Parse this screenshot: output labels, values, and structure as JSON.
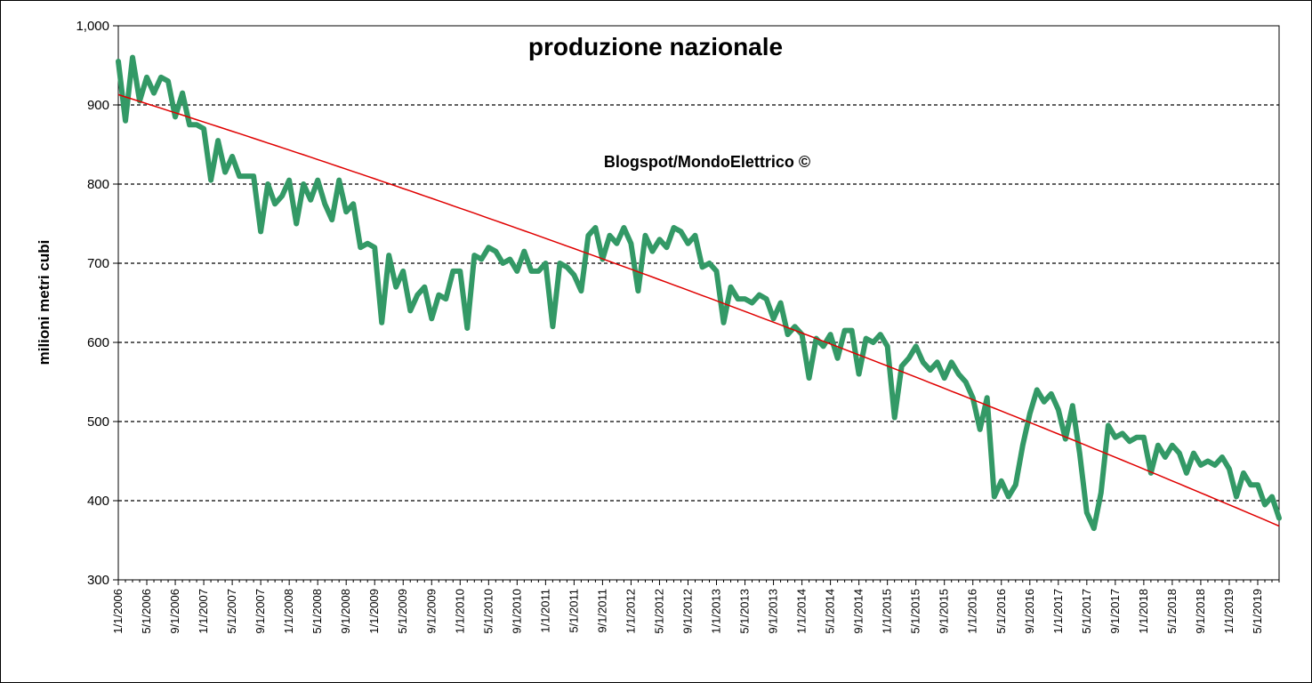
{
  "chart_data": {
    "type": "line",
    "title": "produzione nazionale",
    "annotation": "Blogspot/MondoElettrico ©",
    "xlabel": "",
    "ylabel": "milioni metri cubi",
    "ylim": [
      300,
      1000
    ],
    "yticks": [
      "300",
      "400",
      "500",
      "600",
      "700",
      "800",
      "900",
      "1,000"
    ],
    "ytick_values": [
      300,
      400,
      500,
      600,
      700,
      800,
      900,
      1000
    ],
    "xticks": [
      "1/1/2006",
      "5/1/2006",
      "9/1/2006",
      "1/1/2007",
      "5/1/2007",
      "9/1/2007",
      "1/1/2008",
      "5/1/2008",
      "9/1/2008",
      "1/1/2009",
      "5/1/2009",
      "9/1/2009",
      "1/1/2010",
      "5/1/2010",
      "9/1/2010",
      "1/1/2011",
      "5/1/2011",
      "9/1/2011",
      "1/1/2012",
      "5/1/2012",
      "9/1/2012",
      "1/1/2013",
      "5/1/2013",
      "9/1/2013",
      "1/1/2014",
      "5/1/2014",
      "9/1/2014",
      "1/1/2015",
      "5/1/2015",
      "9/1/2015",
      "1/1/2016",
      "5/1/2016",
      "9/1/2016",
      "1/1/2017",
      "5/1/2017",
      "9/1/2017",
      "1/1/2018",
      "5/1/2018",
      "9/1/2018",
      "1/1/2019",
      "5/1/2019"
    ],
    "x_start": "1/1/2006",
    "x_frequency": "monthly",
    "grid": "horizontal dashed",
    "series": [
      {
        "role": "data",
        "color": "#339966",
        "values": [
          955,
          880,
          960,
          905,
          935,
          915,
          935,
          930,
          885,
          915,
          875,
          875,
          870,
          805,
          855,
          815,
          835,
          810,
          810,
          810,
          740,
          800,
          775,
          785,
          805,
          750,
          800,
          780,
          805,
          775,
          755,
          805,
          765,
          775,
          720,
          725,
          720,
          625,
          710,
          670,
          690,
          640,
          660,
          670,
          630,
          660,
          655,
          690,
          690,
          618,
          710,
          705,
          720,
          715,
          700,
          705,
          690,
          715,
          690,
          690,
          700,
          620,
          700,
          695,
          685,
          665,
          735,
          745,
          705,
          735,
          725,
          745,
          725,
          665,
          735,
          715,
          730,
          720,
          745,
          740,
          725,
          735,
          695,
          700,
          690,
          625,
          670,
          655,
          655,
          650,
          660,
          655,
          630,
          650,
          610,
          620,
          610,
          555,
          605,
          595,
          610,
          580,
          615,
          615,
          560,
          605,
          600,
          610,
          595,
          505,
          570,
          580,
          595,
          575,
          565,
          575,
          555,
          575,
          560,
          550,
          530,
          490,
          530,
          405,
          425,
          405,
          420,
          470,
          510,
          540,
          525,
          535,
          515,
          478,
          520,
          460,
          385,
          365,
          410,
          495,
          480,
          485,
          475,
          480,
          480,
          435,
          470,
          455,
          470,
          460,
          435,
          460,
          445,
          450,
          445,
          455,
          440,
          405,
          435,
          420,
          420,
          395,
          405,
          378
        ]
      },
      {
        "role": "trend",
        "color": "#e00000",
        "values": [
          913,
          368
        ]
      }
    ]
  }
}
